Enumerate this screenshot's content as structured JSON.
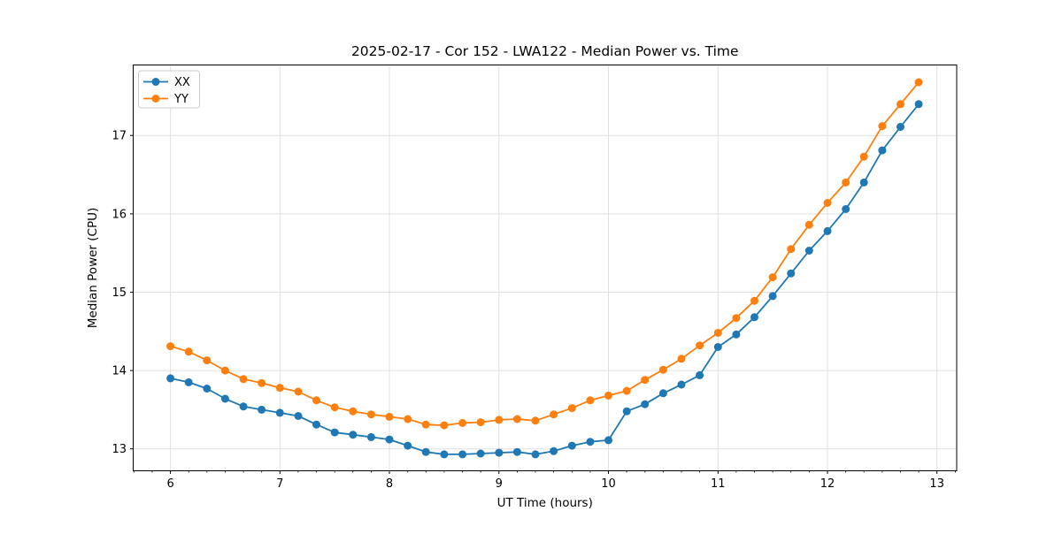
{
  "chart_data": {
    "type": "line",
    "title": "2025-02-17 - Cor 152 - LWA122 - Median Power vs. Time",
    "xlabel": "UT Time (hours)",
    "ylabel": "Median Power (CPU)",
    "x": [
      6.0,
      6.167,
      6.333,
      6.5,
      6.667,
      6.833,
      7.0,
      7.167,
      7.333,
      7.5,
      7.667,
      7.833,
      8.0,
      8.167,
      8.333,
      8.5,
      8.667,
      8.833,
      9.0,
      9.167,
      9.333,
      9.5,
      9.667,
      9.833,
      10.0,
      10.167,
      10.333,
      10.5,
      10.667,
      10.833,
      11.0,
      11.167,
      11.333,
      11.5,
      11.667,
      11.833,
      12.0,
      12.167,
      12.333,
      12.5,
      12.667,
      12.833
    ],
    "series": [
      {
        "name": "XX",
        "color": "#1f77b4",
        "marker": "circle",
        "values": [
          13.9,
          13.85,
          13.77,
          13.64,
          13.54,
          13.5,
          13.46,
          13.42,
          13.31,
          13.21,
          13.18,
          13.15,
          13.12,
          13.04,
          12.96,
          12.93,
          12.93,
          12.94,
          12.95,
          12.96,
          12.93,
          12.97,
          13.04,
          13.09,
          13.11,
          13.48,
          13.57,
          13.71,
          13.82,
          13.94,
          14.3,
          14.46,
          14.68,
          14.95,
          15.24,
          15.53,
          15.78,
          16.06,
          16.4,
          16.81,
          17.11,
          17.4
        ]
      },
      {
        "name": "YY",
        "color": "#ff7f0e",
        "marker": "circle",
        "values": [
          14.31,
          14.24,
          14.13,
          14.0,
          13.89,
          13.84,
          13.78,
          13.73,
          13.62,
          13.53,
          13.48,
          13.44,
          13.41,
          13.38,
          13.31,
          13.3,
          13.33,
          13.34,
          13.37,
          13.38,
          13.36,
          13.44,
          13.52,
          13.62,
          13.68,
          13.74,
          13.88,
          14.01,
          14.15,
          14.32,
          14.48,
          14.67,
          14.89,
          15.19,
          15.55,
          15.86,
          16.14,
          16.4,
          16.73,
          17.12,
          17.4,
          17.68
        ]
      }
    ],
    "xlim": [
      5.66,
      13.18
    ],
    "ylim": [
      12.72,
      17.9
    ],
    "xticks": [
      6,
      7,
      8,
      9,
      10,
      11,
      12,
      13
    ],
    "yticks": [
      13,
      14,
      15,
      16,
      17
    ],
    "x_minor_tick_step": 0.16667,
    "grid": true,
    "legend": {
      "position": "upper left",
      "entries": [
        "XX",
        "YY"
      ]
    }
  },
  "style": {
    "grid_color": "#e0e0e0",
    "spine_color": "#000000",
    "text_color": "#000000",
    "background": "#ffffff",
    "series_colors": {
      "XX": "#1f77b4",
      "YY": "#ff7f0e"
    }
  }
}
